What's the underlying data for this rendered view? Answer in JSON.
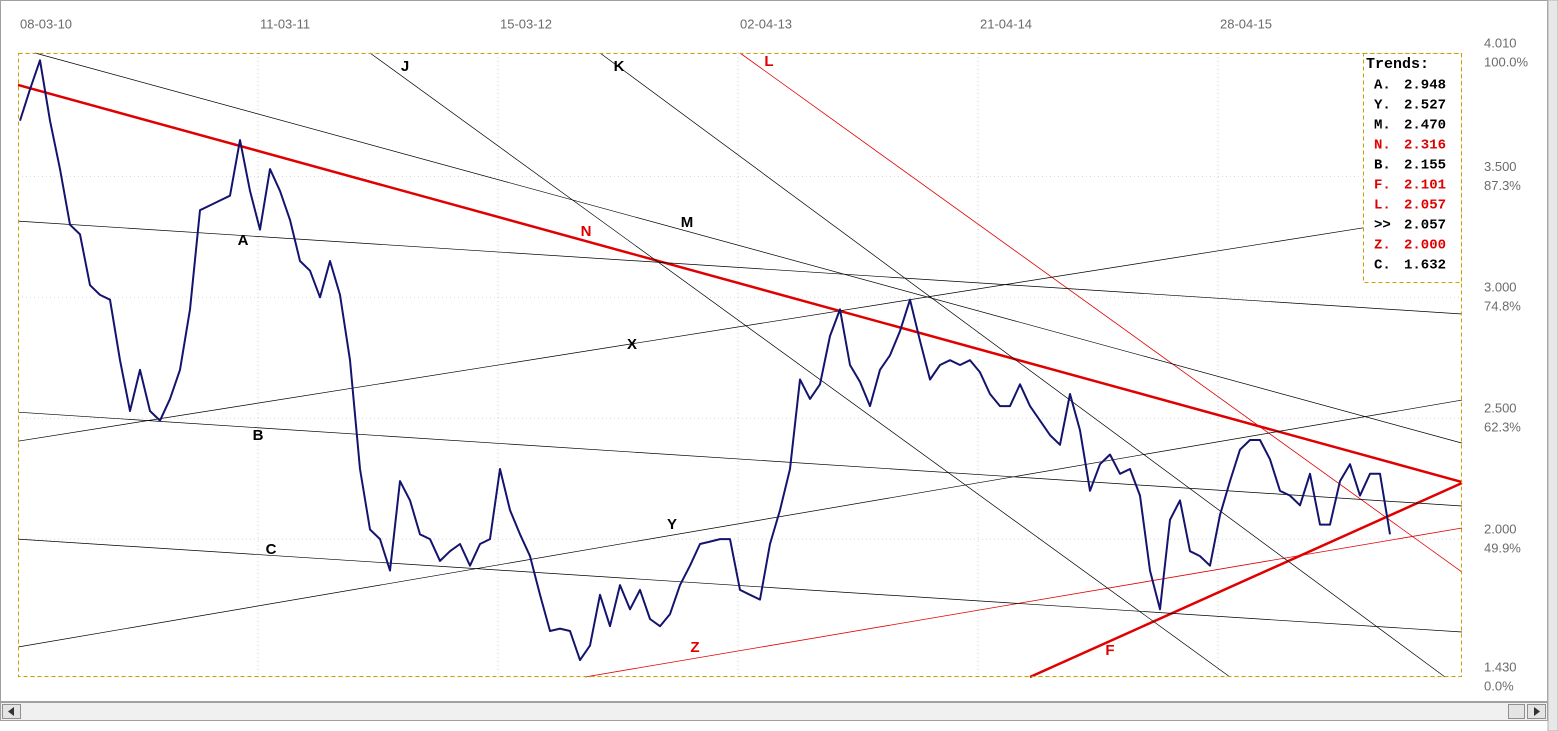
{
  "chart_data": {
    "type": "line",
    "x_labels": [
      "08-03-10",
      "11-03-11",
      "15-03-12",
      "02-04-13",
      "21-04-14",
      "28-04-15"
    ],
    "values": [
      3.73,
      3.86,
      3.98,
      3.73,
      3.53,
      3.3,
      3.26,
      3.05,
      3.01,
      2.99,
      2.74,
      2.53,
      2.7,
      2.53,
      2.49,
      2.58,
      2.7,
      2.95,
      3.36,
      3.38,
      3.4,
      3.42,
      3.65,
      3.44,
      3.28,
      3.53,
      3.44,
      3.32,
      3.15,
      3.11,
      3.0,
      3.15,
      3.01,
      2.74,
      2.29,
      2.04,
      2.0,
      1.87,
      2.24,
      2.16,
      2.02,
      2.0,
      1.91,
      1.95,
      1.98,
      1.89,
      1.98,
      2.0,
      2.29,
      2.12,
      2.02,
      1.93,
      1.77,
      1.62,
      1.63,
      1.62,
      1.5,
      1.56,
      1.77,
      1.64,
      1.81,
      1.71,
      1.79,
      1.67,
      1.64,
      1.69,
      1.81,
      1.89,
      1.98,
      1.99,
      2.0,
      2.0,
      1.79,
      1.77,
      1.75,
      1.98,
      2.12,
      2.29,
      2.66,
      2.58,
      2.64,
      2.84,
      2.95,
      2.72,
      2.65,
      2.55,
      2.7,
      2.76,
      2.86,
      2.99,
      2.82,
      2.66,
      2.72,
      2.74,
      2.72,
      2.74,
      2.69,
      2.6,
      2.55,
      2.55,
      2.64,
      2.55,
      2.49,
      2.43,
      2.39,
      2.6,
      2.45,
      2.2,
      2.31,
      2.35,
      2.27,
      2.29,
      2.18,
      1.87,
      1.71,
      2.08,
      2.16,
      1.95,
      1.93,
      1.89,
      2.1,
      2.24,
      2.37,
      2.41,
      2.41,
      2.33,
      2.2,
      2.18,
      2.14,
      2.27,
      2.06,
      2.06,
      2.24,
      2.31,
      2.18,
      2.27,
      2.27,
      2.02
    ],
    "color": "#14146e",
    "ylim": [
      1.43,
      4.01
    ],
    "yticks": [
      {
        "value": 4.01,
        "label": "4.010"
      },
      {
        "value": 3.5,
        "label": "3.500"
      },
      {
        "value": 3,
        "label": "3.000"
      },
      {
        "value": 2.5,
        "label": "2.500"
      },
      {
        "value": 2,
        "label": "2.000"
      },
      {
        "value": 1.43,
        "label": "1.430"
      }
    ],
    "ytick_percent_labels": [
      "100.0%",
      "87.3%",
      "74.8%",
      "62.3%",
      "49.9%",
      "0.0%"
    ],
    "grid": true,
    "trend_lines": [
      {
        "label": "N",
        "color": "#e00000",
        "width": 2.5,
        "start": [
          -0.2,
          3.878
        ],
        "end": [
          144.2,
          2.236
        ]
      },
      {
        "label": "F",
        "color": "#e00000",
        "width": 2.5,
        "start": [
          101,
          1.43
        ],
        "end": [
          144.2,
          2.232
        ]
      },
      {
        "label": "L",
        "color": "#e00000",
        "width": 0.8,
        "start": [
          72,
          4.01
        ],
        "end": [
          144.2,
          1.864
        ]
      },
      {
        "label": "Z",
        "color": "#e00000",
        "width": 0.8,
        "start": [
          56.5,
          1.43
        ],
        "end": [
          144.2,
          2.046
        ]
      },
      {
        "label": "J",
        "color": "#000000",
        "width": 0.7,
        "start": [
          35,
          4.01
        ],
        "end": [
          121,
          1.43
        ]
      },
      {
        "label": "K",
        "color": "#000000",
        "width": 0.7,
        "start": [
          58,
          4.01
        ],
        "end": [
          142.5,
          1.43
        ]
      },
      {
        "label": "M",
        "color": "#000000",
        "width": 0.7,
        "start": [
          1.5,
          4.01
        ],
        "end": [
          144.2,
          2.397
        ]
      },
      {
        "label": "A",
        "color": "#000000",
        "width": 0.7,
        "start": [
          -0.2,
          3.315
        ],
        "end": [
          144.2,
          2.931
        ]
      },
      {
        "label": "X",
        "color": "#000000",
        "width": 0.7,
        "start": [
          -0.2,
          2.405
        ],
        "end": [
          144.2,
          3.352
        ]
      },
      {
        "label": "Y",
        "color": "#000000",
        "width": 0.7,
        "start": [
          -0.2,
          1.554
        ],
        "end": [
          144.2,
          2.575
        ]
      },
      {
        "label": "B",
        "color": "#000000",
        "width": 0.7,
        "start": [
          -0.2,
          2.525
        ],
        "end": [
          144.2,
          2.137
        ]
      },
      {
        "label": "C",
        "color": "#000000",
        "width": 0.7,
        "start": [
          -0.2,
          2.0
        ],
        "end": [
          144.2,
          1.616
        ]
      }
    ],
    "trends_panel": {
      "title": "Trends:",
      "entries": [
        {
          "name": "A.",
          "value": "2.948",
          "color": "#000000"
        },
        {
          "name": "Y.",
          "value": "2.527",
          "color": "#000000"
        },
        {
          "name": "M.",
          "value": "2.470",
          "color": "#000000"
        },
        {
          "name": "N.",
          "value": "2.316",
          "color": "#e00000"
        },
        {
          "name": "B.",
          "value": "2.155",
          "color": "#000000"
        },
        {
          "name": "F.",
          "value": "2.101",
          "color": "#e00000"
        },
        {
          "name": "L.",
          "value": "2.057",
          "color": "#e00000"
        },
        {
          "name": ">>",
          "value": "2.057",
          "color": "#000000"
        },
        {
          "name": "Z.",
          "value": "2.000",
          "color": "#e00000"
        },
        {
          "name": "C.",
          "value": "1.632",
          "color": "#000000"
        }
      ]
    }
  }
}
